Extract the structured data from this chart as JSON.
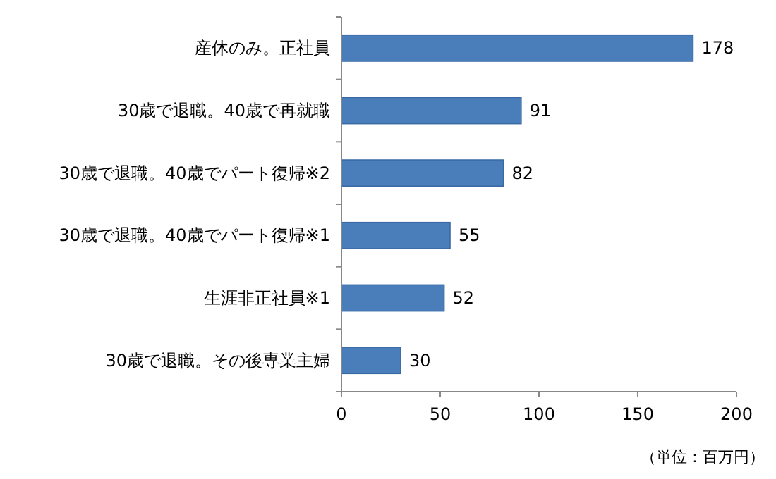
{
  "chart_data": {
    "type": "bar",
    "orientation": "horizontal",
    "categories": [
      "産休のみ。正社員",
      "30歳で退職。40歳で再就職",
      "30歳で退職。40歳でパート復帰※2",
      "30歳で退職。40歳でパート復帰※1",
      "生涯非正社員※1",
      "30歳で退職。その後専業主婦"
    ],
    "values": [
      178,
      91,
      82,
      55,
      52,
      30
    ],
    "color": "#4a7ebb",
    "xlim": [
      0,
      200
    ],
    "xticks": [
      0,
      50,
      100,
      150,
      200
    ],
    "data_labels": true,
    "annotations": [
      "（単位：百万円）"
    ]
  }
}
